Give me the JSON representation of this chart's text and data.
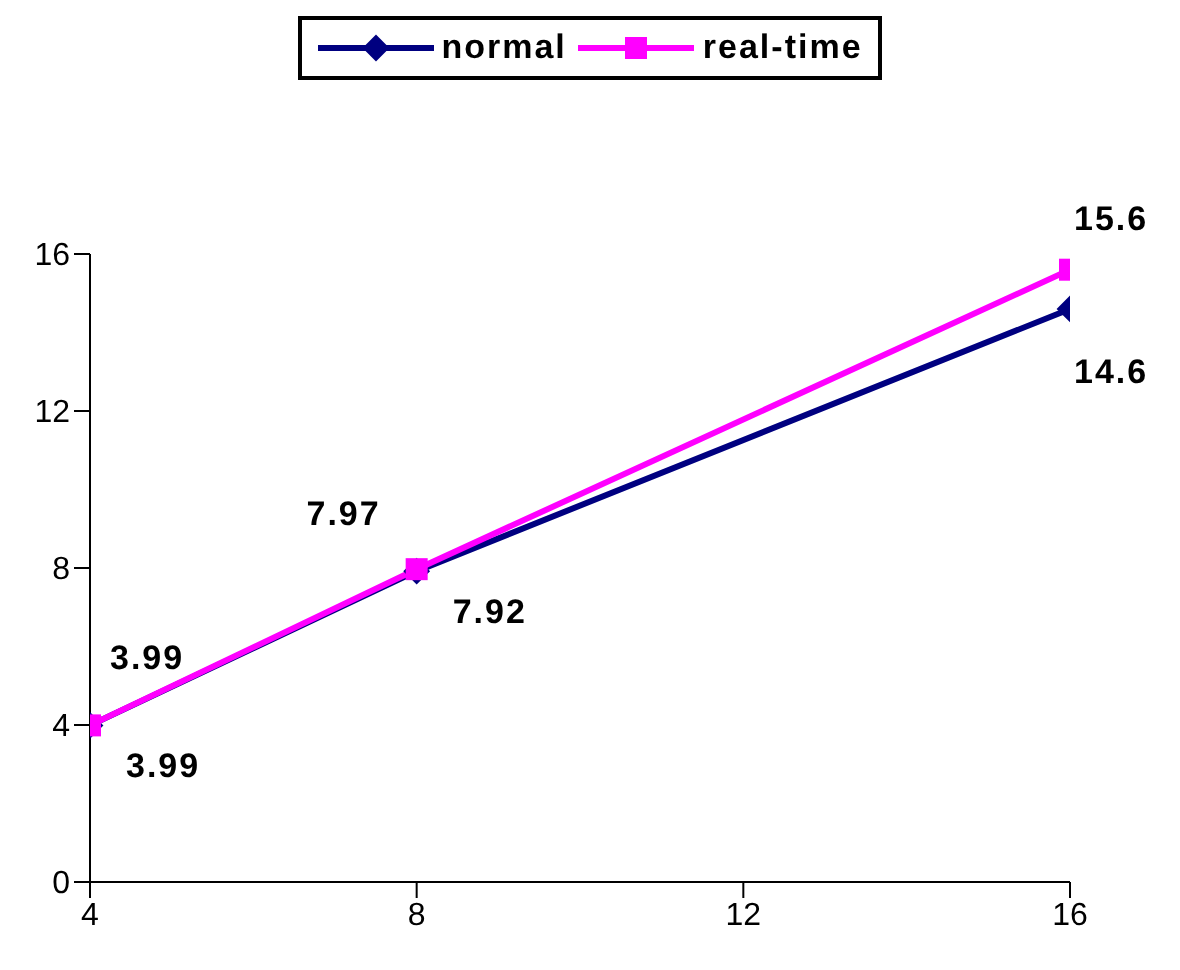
{
  "chart_data": {
    "type": "line",
    "x": [
      4,
      8,
      16
    ],
    "series": [
      {
        "name": "normal",
        "color": "#000080",
        "marker": "diamond",
        "values": [
          3.99,
          7.92,
          14.6
        ]
      },
      {
        "name": "real-time",
        "color": "#ff00ff",
        "marker": "square",
        "values": [
          3.99,
          7.97,
          15.6
        ]
      }
    ],
    "xlim": [
      4,
      16
    ],
    "xticks": [
      4,
      8,
      12,
      16
    ],
    "ylim": [
      0,
      16
    ],
    "yticks": [
      0,
      4,
      8,
      12,
      16
    ],
    "grid": false,
    "legend": "top",
    "data_labels": true,
    "line_style": "solid"
  }
}
